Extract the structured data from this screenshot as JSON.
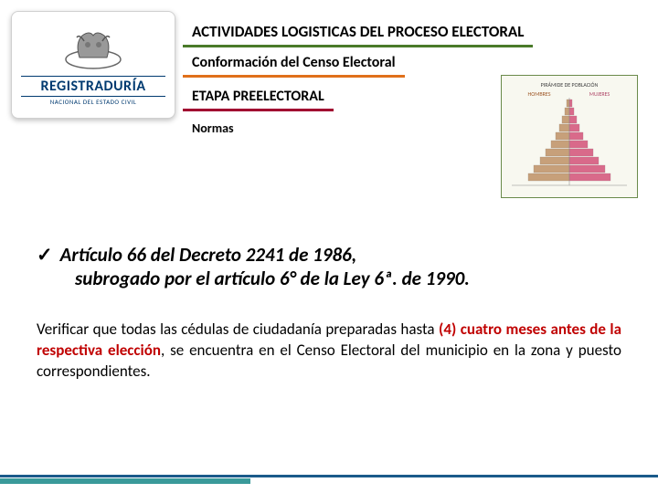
{
  "logo": {
    "title": "REGISTRADURÍA",
    "subtitle": "NACIONAL DEL ESTADO CIVIL"
  },
  "headers": {
    "r1": "ACTIVIDADES LOGISTICAS DEL PROCESO ELECTORAL",
    "r2": "Conformación del Censo Electoral",
    "r3": "ETAPA PREELECTORAL",
    "r4": "Normas"
  },
  "pyramid": {
    "title": "PIRÁMIDE DE POBLACIÓN",
    "left_label": "HOMBRES",
    "right_label": "MUJERES",
    "left_color": "#c7a07a",
    "right_color": "#d96a8a",
    "border_color": "#6a8a4a",
    "bg_color": "#f8f8f0",
    "rows": [
      6,
      10,
      16,
      22,
      30,
      40,
      52,
      64,
      78,
      90
    ]
  },
  "article": {
    "line1": "Artículo 66 del Decreto 2241 de 1986,",
    "line2": "subrogado por el artículo 6° de la Ley 6ª. de 1990."
  },
  "body": {
    "pre": "Verificar que todas las cédulas de ciudadanía preparadas hasta ",
    "hl": "(4) cuatro meses antes de la respectiva elección",
    "post": ", se encuentra en el Censo Electoral del municipio en la zona y puesto correspondientes."
  },
  "colors": {
    "underline_r1": "#4a7a2a",
    "underline_r2": "#e0701a",
    "underline_r3": "#a00030",
    "highlight": "#c00000",
    "logo_text": "#003a70"
  }
}
